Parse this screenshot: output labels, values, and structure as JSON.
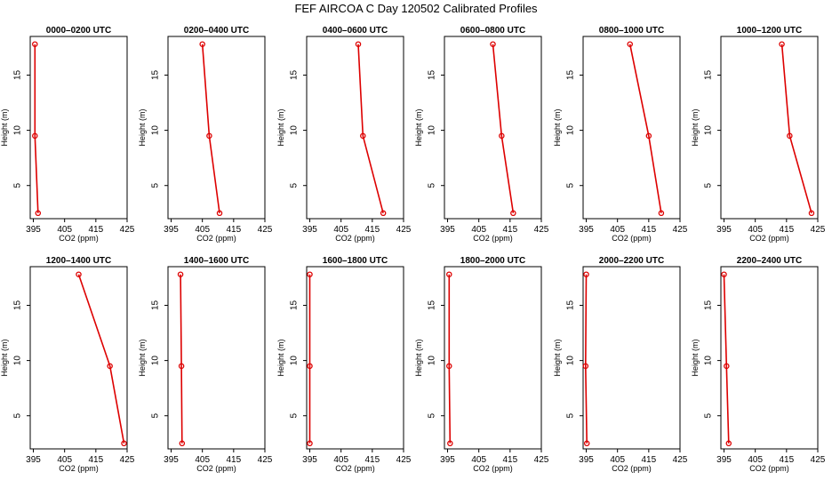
{
  "title": "FEF AIRCOA C  Day 120502  Calibrated Profiles",
  "colors": {
    "series": "#dd0000",
    "frame": "#000000",
    "background": "#ffffff"
  },
  "chart_data": [
    {
      "type": "line",
      "title": "0000–0200 UTC",
      "xlabel": "CO2 (ppm)",
      "ylabel": "Height (m)",
      "xlim": [
        394,
        425
      ],
      "ylim": [
        2,
        18.5
      ],
      "xticks": [
        395,
        405,
        415,
        425
      ],
      "yticks": [
        5,
        10,
        15
      ],
      "grid": false,
      "points": [
        {
          "x": 396.5,
          "y": 2.5
        },
        {
          "x": 395.5,
          "y": 9.5
        },
        {
          "x": 395.5,
          "y": 17.8
        }
      ]
    },
    {
      "type": "line",
      "title": "0200–0400 UTC",
      "xlabel": "CO2 (ppm)",
      "ylabel": "Height (m)",
      "xlim": [
        394,
        425
      ],
      "ylim": [
        2,
        18.5
      ],
      "xticks": [
        395,
        405,
        415,
        425
      ],
      "yticks": [
        5,
        10,
        15
      ],
      "grid": false,
      "points": [
        {
          "x": 410.5,
          "y": 2.5
        },
        {
          "x": 407.2,
          "y": 9.5
        },
        {
          "x": 405.0,
          "y": 17.8
        }
      ]
    },
    {
      "type": "line",
      "title": "0400–0600 UTC",
      "xlabel": "CO2 (ppm)",
      "ylabel": "Height (m)",
      "xlim": [
        394,
        425
      ],
      "ylim": [
        2,
        18.5
      ],
      "xticks": [
        395,
        405,
        415,
        425
      ],
      "yticks": [
        5,
        10,
        15
      ],
      "grid": false,
      "points": [
        {
          "x": 418.5,
          "y": 2.5
        },
        {
          "x": 412.0,
          "y": 9.5
        },
        {
          "x": 410.5,
          "y": 17.8
        }
      ]
    },
    {
      "type": "line",
      "title": "0600–0800 UTC",
      "xlabel": "CO2 (ppm)",
      "ylabel": "Height (m)",
      "xlim": [
        394,
        425
      ],
      "ylim": [
        2,
        18.5
      ],
      "xticks": [
        395,
        405,
        415,
        425
      ],
      "yticks": [
        5,
        10,
        15
      ],
      "grid": false,
      "points": [
        {
          "x": 416.0,
          "y": 2.5
        },
        {
          "x": 412.3,
          "y": 9.5
        },
        {
          "x": 409.5,
          "y": 17.8
        }
      ]
    },
    {
      "type": "line",
      "title": "0800–1000 UTC",
      "xlabel": "CO2 (ppm)",
      "ylabel": "Height (m)",
      "xlim": [
        394,
        425
      ],
      "ylim": [
        2,
        18.5
      ],
      "xticks": [
        395,
        405,
        415,
        425
      ],
      "yticks": [
        5,
        10,
        15
      ],
      "grid": false,
      "points": [
        {
          "x": 419.0,
          "y": 2.5
        },
        {
          "x": 415.0,
          "y": 9.5
        },
        {
          "x": 409.0,
          "y": 17.8
        }
      ]
    },
    {
      "type": "line",
      "title": "1000–1200 UTC",
      "xlabel": "CO2 (ppm)",
      "ylabel": "Height (m)",
      "xlim": [
        394,
        425
      ],
      "ylim": [
        2,
        18.5
      ],
      "xticks": [
        395,
        405,
        415,
        425
      ],
      "yticks": [
        5,
        10,
        15
      ],
      "grid": false,
      "points": [
        {
          "x": 423.0,
          "y": 2.5
        },
        {
          "x": 416.0,
          "y": 9.5
        },
        {
          "x": 413.5,
          "y": 17.8
        }
      ]
    },
    {
      "type": "line",
      "title": "1200–1400 UTC",
      "xlabel": "CO2 (ppm)",
      "ylabel": "Height (m)",
      "xlim": [
        394,
        425
      ],
      "ylim": [
        2,
        18.5
      ],
      "xticks": [
        395,
        405,
        415,
        425
      ],
      "yticks": [
        5,
        10,
        15
      ],
      "grid": false,
      "points": [
        {
          "x": 424.0,
          "y": 2.5
        },
        {
          "x": 419.5,
          "y": 9.5
        },
        {
          "x": 409.5,
          "y": 17.8
        }
      ]
    },
    {
      "type": "line",
      "title": "1400–1600 UTC",
      "xlabel": "CO2 (ppm)",
      "ylabel": "Height (m)",
      "xlim": [
        394,
        425
      ],
      "ylim": [
        2,
        18.5
      ],
      "xticks": [
        395,
        405,
        415,
        425
      ],
      "yticks": [
        5,
        10,
        15
      ],
      "grid": false,
      "points": [
        {
          "x": 398.5,
          "y": 2.5
        },
        {
          "x": 398.3,
          "y": 9.5
        },
        {
          "x": 398.0,
          "y": 17.8
        }
      ]
    },
    {
      "type": "line",
      "title": "1600–1800 UTC",
      "xlabel": "CO2 (ppm)",
      "ylabel": "Height (m)",
      "xlim": [
        394,
        425
      ],
      "ylim": [
        2,
        18.5
      ],
      "xticks": [
        395,
        405,
        415,
        425
      ],
      "yticks": [
        5,
        10,
        15
      ],
      "grid": false,
      "points": [
        {
          "x": 395.0,
          "y": 2.5
        },
        {
          "x": 395.0,
          "y": 9.5
        },
        {
          "x": 395.0,
          "y": 17.8
        }
      ]
    },
    {
      "type": "line",
      "title": "1800–2000 UTC",
      "xlabel": "CO2 (ppm)",
      "ylabel": "Height (m)",
      "xlim": [
        394,
        425
      ],
      "ylim": [
        2,
        18.5
      ],
      "xticks": [
        395,
        405,
        415,
        425
      ],
      "yticks": [
        5,
        10,
        15
      ],
      "grid": false,
      "points": [
        {
          "x": 395.8,
          "y": 2.5
        },
        {
          "x": 395.5,
          "y": 9.5
        },
        {
          "x": 395.5,
          "y": 17.8
        }
      ]
    },
    {
      "type": "line",
      "title": "2000–2200 UTC",
      "xlabel": "CO2 (ppm)",
      "ylabel": "Height (m)",
      "xlim": [
        394,
        425
      ],
      "ylim": [
        2,
        18.5
      ],
      "xticks": [
        395,
        405,
        415,
        425
      ],
      "yticks": [
        5,
        10,
        15
      ],
      "grid": false,
      "points": [
        {
          "x": 395.2,
          "y": 2.5
        },
        {
          "x": 394.8,
          "y": 9.5
        },
        {
          "x": 395.0,
          "y": 17.8
        }
      ]
    },
    {
      "type": "line",
      "title": "2200–2400 UTC",
      "xlabel": "CO2 (ppm)",
      "ylabel": "Height (m)",
      "xlim": [
        394,
        425
      ],
      "ylim": [
        2,
        18.5
      ],
      "xticks": [
        395,
        405,
        415,
        425
      ],
      "yticks": [
        5,
        10,
        15
      ],
      "grid": false,
      "points": [
        {
          "x": 396.5,
          "y": 2.5
        },
        {
          "x": 395.8,
          "y": 9.5
        },
        {
          "x": 395.0,
          "y": 17.8
        }
      ]
    }
  ]
}
